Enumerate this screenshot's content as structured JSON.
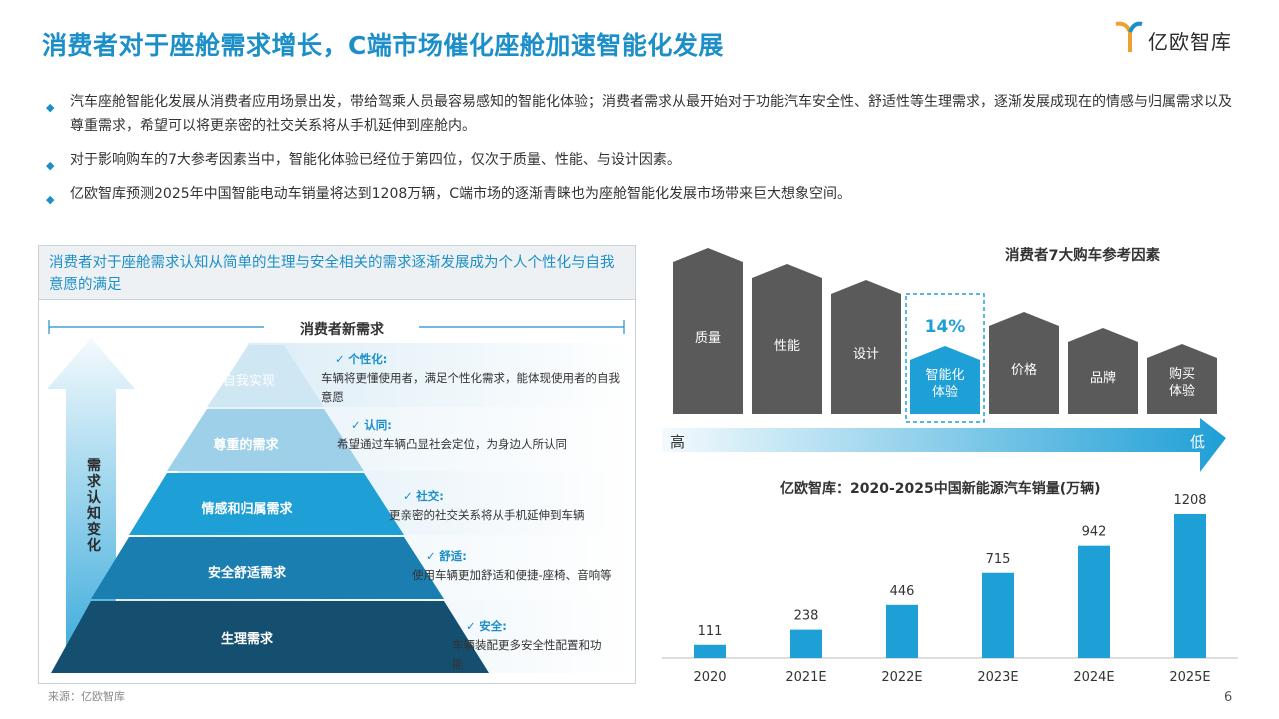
{
  "title": "消费者对于座舱需求增长，C端市场催化座舱加速智能化发展",
  "logo": {
    "text": "亿欧智库"
  },
  "bullets": [
    "汽车座舱智能化发展从消费者应用场景出发，带给驾乘人员最容易感知的智能化体验；消费者需求从最开始对于功能汽车安全性、舒适性等生理需求，逐渐发展成现在的情感与归属需求以及尊重需求，希望可以将更亲密的社交关系将从手机延伸到座舱内。",
    "对于影响购车的7大参考因素当中，智能化体验已经位于第四位，仅次于质量、性能、与设计因素。",
    "亿欧智库预测2025年中国智能电动车销量将达到1208万辆，C端市场的逐渐青睐也为座舱智能化发展市场带来巨大想象空间。"
  ],
  "left_panel": {
    "header": "消费者对于座舱需求认知从简单的生理与安全相关的需求逐渐发展成为个人个性化与自我意愿的满足",
    "top_label": "消费者新需求",
    "arrow_label": "需求认知变化",
    "pyramid": [
      {
        "level": "自我实现",
        "head": "个性化:",
        "desc": "车辆将更懂使用者，满足个性化需求，能体现使用者的自我意愿"
      },
      {
        "level": "尊重的需求",
        "head": "认同:",
        "desc": "希望通过车辆凸显社会定位，为身边人所认同"
      },
      {
        "level": "情感和归属需求",
        "head": "社交:",
        "desc": "更亲密的社交关系将从手机延伸到车辆"
      },
      {
        "level": "安全舒适需求",
        "head": "舒适:",
        "desc": "使用车辆更加舒适和便捷-座椅、音响等"
      },
      {
        "level": "生理需求",
        "head": "安全:",
        "desc": "车辆装配更多安全性配置和功能"
      }
    ],
    "check_glyph": "✓"
  },
  "factors": {
    "title": "消费者7大购车参考因素",
    "items": [
      "质量",
      "性能",
      "设计",
      "智能化体验",
      "价格",
      "品牌",
      "购买体验"
    ],
    "highlight_index": 3,
    "highlight_value": "14%",
    "scale_high": "高",
    "scale_low": "低",
    "colors": {
      "normal": "#5a5a5a",
      "highlight": "#1e9fd6"
    }
  },
  "chart_data": {
    "type": "bar",
    "title": "亿欧智库：2020-2025中国新能源汽车销量(万辆)",
    "categories": [
      "2020",
      "2021E",
      "2022E",
      "2023E",
      "2024E",
      "2025E"
    ],
    "values": [
      111,
      238,
      446,
      715,
      942,
      1208
    ],
    "ylim": [
      0,
      1300
    ],
    "color": "#1e9fd6"
  },
  "footer": {
    "source": "来源：亿欧智库",
    "page": "6"
  }
}
